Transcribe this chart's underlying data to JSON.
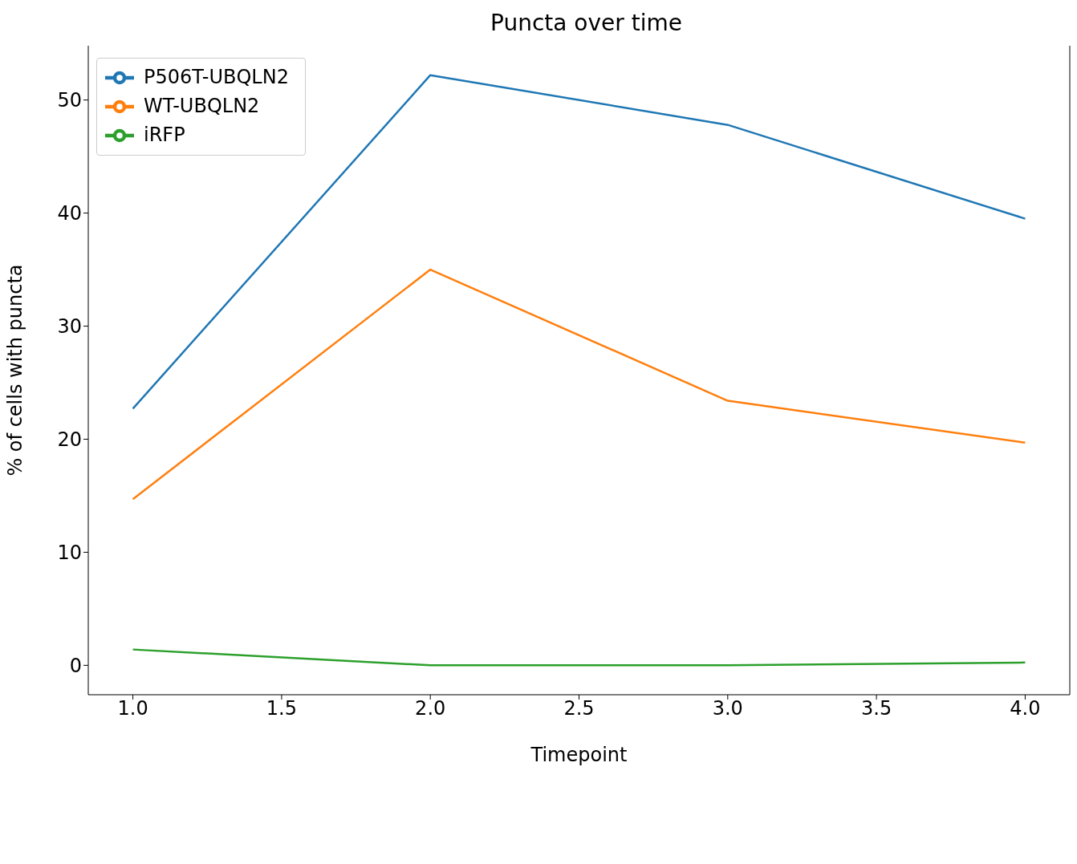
{
  "chart_data": {
    "type": "line",
    "title": "Puncta over time",
    "xlabel": "Timepoint",
    "ylabel": "% of cells with puncta",
    "x": [
      1,
      2,
      3,
      4
    ],
    "series": [
      {
        "name": "P506T-UBQLN2",
        "color": "#1f77b4",
        "values": [
          22.7,
          52.2,
          47.8,
          39.5
        ]
      },
      {
        "name": "WT-UBQLN2",
        "color": "#ff7f0e",
        "values": [
          14.7,
          35.0,
          23.4,
          19.7
        ]
      },
      {
        "name": "iRFP",
        "color": "#2ca02c",
        "values": [
          1.4,
          0,
          0,
          0.25
        ]
      }
    ],
    "xlim": [
      0.85,
      4.15
    ],
    "xticks": [
      {
        "value": 1,
        "label": "1.0"
      },
      {
        "value": 1.5,
        "label": "1.5"
      },
      {
        "value": 2,
        "label": "2.0"
      },
      {
        "value": 2.5,
        "label": "2.5"
      },
      {
        "value": 3,
        "label": "3.0"
      },
      {
        "value": 3.5,
        "label": "3.5"
      },
      {
        "value": 4,
        "label": "4.0"
      }
    ],
    "ylim": [
      -2.6,
      54.8
    ],
    "yticks": [
      0,
      10,
      20,
      30,
      40,
      50
    ],
    "legend": "top left",
    "grid": false,
    "marker": "none",
    "line_style": "solid"
  }
}
